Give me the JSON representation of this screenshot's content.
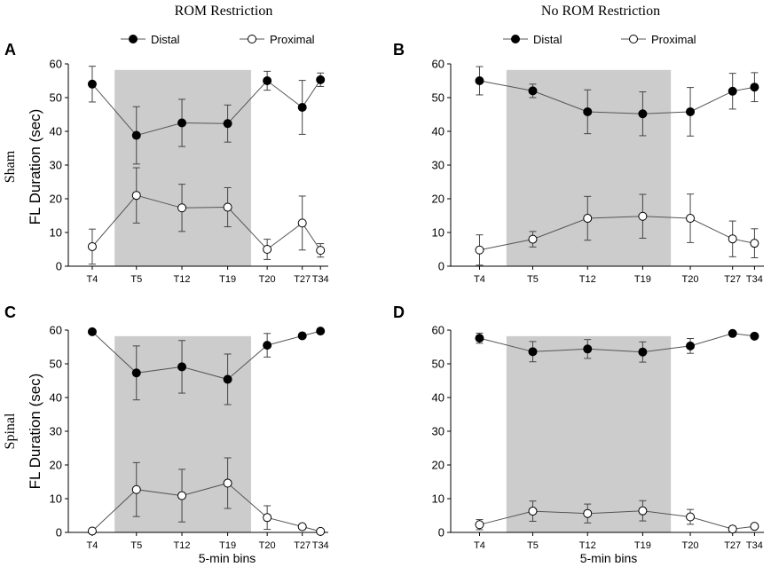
{
  "column_titles": [
    "ROM Restriction",
    "No ROM Restriction"
  ],
  "row_labels": [
    "Sham",
    "Spinal"
  ],
  "legend": {
    "distal": "Distal",
    "proximal": "Proximal"
  },
  "xlabel": "5-min bins",
  "ylabel": "FL Duration (sec)",
  "colors": {
    "shade": "#cccccc",
    "axis": "#000000",
    "line": "#555555",
    "filled": "#000000",
    "open": "#ffffff"
  },
  "chart_data": [
    {
      "type": "line",
      "panel": "A",
      "categories": [
        "T4",
        "T5",
        "T12",
        "T19",
        "T20",
        "T27",
        "T34"
      ],
      "ylim": [
        0,
        60
      ],
      "yticks": [
        0,
        10,
        20,
        30,
        40,
        50,
        60
      ],
      "shaded_categories": [
        "T5",
        "T19"
      ],
      "series": [
        {
          "name": "Distal",
          "values": [
            54,
            38.8,
            42.5,
            42.3,
            55,
            47.1,
            55.3
          ],
          "errors": [
            5.3,
            8.5,
            7,
            5.5,
            2.8,
            8,
            2
          ]
        },
        {
          "name": "Proximal",
          "values": [
            5.8,
            21,
            17.3,
            17.5,
            5,
            12.8,
            4.7
          ],
          "errors": [
            5.2,
            8.2,
            7,
            5.8,
            3,
            8,
            2
          ]
        }
      ]
    },
    {
      "type": "line",
      "panel": "B",
      "categories": [
        "T4",
        "T5",
        "T12",
        "T19",
        "T20",
        "T27",
        "T34"
      ],
      "ylim": [
        0,
        60
      ],
      "yticks": [
        0,
        10,
        20,
        30,
        40,
        50,
        60
      ],
      "shaded_categories": [
        "T5",
        "T19"
      ],
      "series": [
        {
          "name": "Distal",
          "values": [
            55,
            52,
            45.8,
            45.2,
            45.8,
            51.9,
            53.1
          ],
          "errors": [
            4.2,
            2,
            6.5,
            6.5,
            7.2,
            5.3,
            4.3
          ]
        },
        {
          "name": "Proximal",
          "values": [
            4.8,
            8,
            14.2,
            14.8,
            14.2,
            8.1,
            6.8
          ],
          "errors": [
            4.5,
            2.3,
            6.5,
            6.5,
            7.2,
            5.3,
            4.3
          ]
        }
      ]
    },
    {
      "type": "line",
      "panel": "C",
      "categories": [
        "T4",
        "T5",
        "T12",
        "T19",
        "T20",
        "T27",
        "T34"
      ],
      "ylim": [
        0,
        60
      ],
      "yticks": [
        0,
        10,
        20,
        30,
        40,
        50,
        60
      ],
      "shaded_categories": [
        "T5",
        "T19"
      ],
      "series": [
        {
          "name": "Distal",
          "values": [
            59.5,
            47.3,
            49.1,
            45.4,
            55.5,
            58.3,
            59.7
          ],
          "errors": [
            0,
            8,
            7.8,
            7.5,
            3.5,
            0,
            0
          ]
        },
        {
          "name": "Proximal",
          "values": [
            0.4,
            12.7,
            10.9,
            14.6,
            4.4,
            1.7,
            0.3
          ],
          "errors": [
            0,
            8,
            7.8,
            7.5,
            3.5,
            0.5,
            0
          ]
        }
      ]
    },
    {
      "type": "line",
      "panel": "D",
      "categories": [
        "T4",
        "T5",
        "T12",
        "T19",
        "T20",
        "T27",
        "T34"
      ],
      "ylim": [
        0,
        60
      ],
      "yticks": [
        0,
        10,
        20,
        30,
        40,
        50,
        60
      ],
      "shaded_categories": [
        "T5",
        "T19"
      ],
      "series": [
        {
          "name": "Distal",
          "values": [
            57.6,
            53.6,
            54.4,
            53.5,
            55.3,
            59,
            58.2
          ],
          "errors": [
            1.5,
            3,
            2.8,
            3,
            2.2,
            0,
            0
          ]
        },
        {
          "name": "Proximal",
          "values": [
            2.3,
            6.3,
            5.6,
            6.4,
            4.6,
            1,
            1.8
          ],
          "errors": [
            1.5,
            3,
            2.8,
            3,
            2.2,
            0,
            0
          ]
        }
      ]
    }
  ]
}
